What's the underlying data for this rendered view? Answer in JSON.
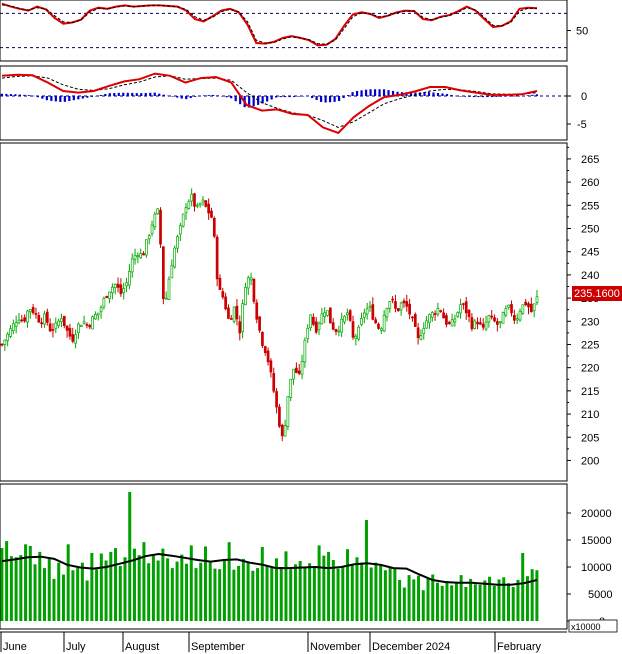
{
  "chart_data": [
    {
      "type": "line",
      "panel": "stochastic",
      "y_ticks": [
        50
      ],
      "ylim": [
        0,
        100
      ],
      "reference_levels": [
        80,
        20
      ],
      "series": [
        {
          "color": "#dd0000",
          "style": "solid",
          "values": [
            97,
            92,
            88,
            85,
            92,
            87,
            72,
            62,
            64,
            69,
            85,
            90,
            88,
            92,
            94,
            92,
            93,
            94,
            94,
            93,
            92,
            85,
            70,
            66,
            75,
            85,
            88,
            82,
            60,
            28,
            27,
            30,
            37,
            40,
            37,
            33,
            24,
            25,
            35,
            58,
            78,
            82,
            79,
            72,
            76,
            82,
            85,
            84,
            70,
            68,
            74,
            77,
            84,
            92,
            85,
            70,
            56,
            58,
            66,
            88,
            90,
            89
          ]
        },
        {
          "color": "#000000",
          "style": "dashed",
          "values": [
            95,
            93,
            89,
            86,
            90,
            88,
            76,
            65,
            64,
            68,
            82,
            89,
            88,
            91,
            93,
            92,
            93,
            94,
            94,
            93,
            92,
            87,
            74,
            68,
            73,
            83,
            87,
            83,
            65,
            33,
            28,
            29,
            35,
            39,
            37,
            34,
            27,
            26,
            33,
            53,
            74,
            81,
            79,
            74,
            76,
            81,
            84,
            84,
            73,
            69,
            73,
            76,
            82,
            90,
            86,
            73,
            59,
            58,
            64,
            84,
            89,
            89
          ]
        }
      ]
    },
    {
      "type": "bar",
      "panel": "macd",
      "y_ticks": [
        0,
        -5
      ],
      "ylim": [
        -7.5,
        5
      ],
      "macd": [
        3.6,
        3.8,
        3.7,
        2.4,
        0.9,
        0.6,
        0.9,
        1.8,
        2.6,
        3.0,
        4.0,
        3.6,
        2.4,
        3.2,
        3.4,
        2.4,
        -1.6,
        -2.6,
        -2.4,
        -3.2,
        -3.4,
        -5.6,
        -6.6,
        -3.8,
        -1.8,
        -0.2,
        0.2,
        0.8,
        1.6,
        1.6,
        1.0,
        0.6,
        0.2,
        0.2,
        0.3,
        0.9
      ],
      "signal": [
        3.2,
        3.5,
        3.6,
        3.2,
        2.0,
        1.2,
        1.0,
        1.3,
        2.0,
        2.5,
        3.4,
        3.6,
        3.0,
        3.1,
        3.2,
        2.8,
        0.6,
        -1.2,
        -2.2,
        -3.0,
        -3.4,
        -4.4,
        -5.6,
        -4.6,
        -3.0,
        -1.4,
        -0.5,
        0.2,
        0.9,
        1.2,
        1.1,
        0.8,
        0.4,
        0.3,
        0.3,
        0.6
      ],
      "histogram": [
        0.4,
        0.3,
        0.1,
        -0.8,
        -1.1,
        -0.6,
        -0.1,
        0.5,
        0.6,
        0.5,
        0.6,
        0.0,
        -0.6,
        0.1,
        0.2,
        -0.4,
        -2.2,
        -1.4,
        -0.2,
        -0.2,
        0.0,
        -1.2,
        -1.0,
        0.8,
        1.2,
        1.2,
        0.7,
        0.6,
        0.7,
        0.4,
        -0.1,
        -0.2,
        -0.2,
        -0.1,
        0.0,
        0.3
      ]
    },
    {
      "type": "candlestick",
      "panel": "price",
      "y_ticks": [
        200,
        205,
        210,
        215,
        220,
        225,
        230,
        235,
        240,
        245,
        250,
        255,
        260,
        265
      ],
      "ylim": [
        196,
        268
      ],
      "last_value_label": "235.1600",
      "closes": [
        225,
        227,
        229,
        231,
        230,
        233,
        232,
        230,
        231,
        228,
        229,
        231,
        228,
        226,
        229,
        230,
        229,
        231,
        232,
        235,
        237,
        238,
        236,
        238,
        243,
        245,
        244,
        248,
        252,
        254,
        232,
        240,
        246,
        250,
        255,
        257,
        254,
        256,
        254,
        252,
        237,
        235,
        230,
        233,
        228,
        238,
        240,
        232,
        226,
        223,
        217,
        210,
        204,
        215,
        220,
        218,
        225,
        232,
        228,
        231,
        233,
        229,
        228,
        230,
        232,
        226,
        228,
        232,
        233,
        230,
        228,
        233,
        235,
        232,
        234,
        233,
        230,
        226,
        229,
        231,
        232,
        233,
        230,
        229,
        231,
        234,
        232,
        229,
        230,
        228,
        231,
        230,
        229,
        232,
        233,
        230,
        233,
        234,
        232,
        235
      ]
    },
    {
      "type": "bar",
      "panel": "volume",
      "y_ticks": [
        0,
        5000,
        10000,
        15000,
        20000
      ],
      "ylim": [
        0,
        25000
      ],
      "unit_label": "x10000",
      "volume": [
        13500,
        14800,
        12000,
        11800,
        12200,
        14200,
        13900,
        10500,
        12800,
        9800,
        11500,
        7800,
        10800,
        8600,
        14200,
        9400,
        9800,
        10800,
        7500,
        12600,
        9600,
        12500,
        11200,
        12800,
        13500,
        10200,
        11800,
        23900,
        13400,
        12200,
        14600,
        10700,
        12400,
        11200,
        13400,
        11600,
        9800,
        11000,
        12300,
        10600,
        14000,
        9800,
        10800,
        13800,
        11100,
        9700,
        9600,
        11200,
        14600,
        9500,
        10200,
        11500,
        10800,
        9300,
        9800,
        13700,
        10100,
        9900,
        11600,
        10000,
        12900,
        9600,
        10500,
        11100,
        9900,
        10700,
        9800,
        14000,
        12100,
        12800,
        11300,
        9700,
        10100,
        13300,
        10500,
        11800,
        10800,
        18700,
        9900,
        10800,
        10400,
        9400,
        9800,
        9800,
        7600,
        6200,
        8500,
        7700,
        8400,
        5700,
        7900,
        8600,
        7100,
        6500,
        7400,
        6600,
        7200,
        8500,
        6300,
        7800,
        6800,
        6700,
        7500,
        8200,
        6500,
        7700,
        8100,
        7000,
        6300,
        7600,
        12600,
        8300,
        9600,
        9400
      ],
      "moving_average": [
        11100,
        11400,
        11800,
        11900,
        11500,
        10400,
        9900,
        9700,
        10000,
        10600,
        11200,
        12000,
        12400,
        12100,
        11700,
        11300,
        11000,
        11300,
        11400,
        10800,
        10400,
        9800,
        9800,
        9900,
        10000,
        9800,
        10000,
        10500,
        10700,
        10400,
        9800,
        9700,
        8600,
        7600,
        7200,
        7100,
        7100,
        6900,
        6700,
        6700,
        7000,
        7600
      ]
    },
    {
      "type": "axis",
      "x_ticks": [
        "June",
        "July",
        "August",
        "September",
        "November",
        "December 2024",
        "February"
      ]
    }
  ]
}
